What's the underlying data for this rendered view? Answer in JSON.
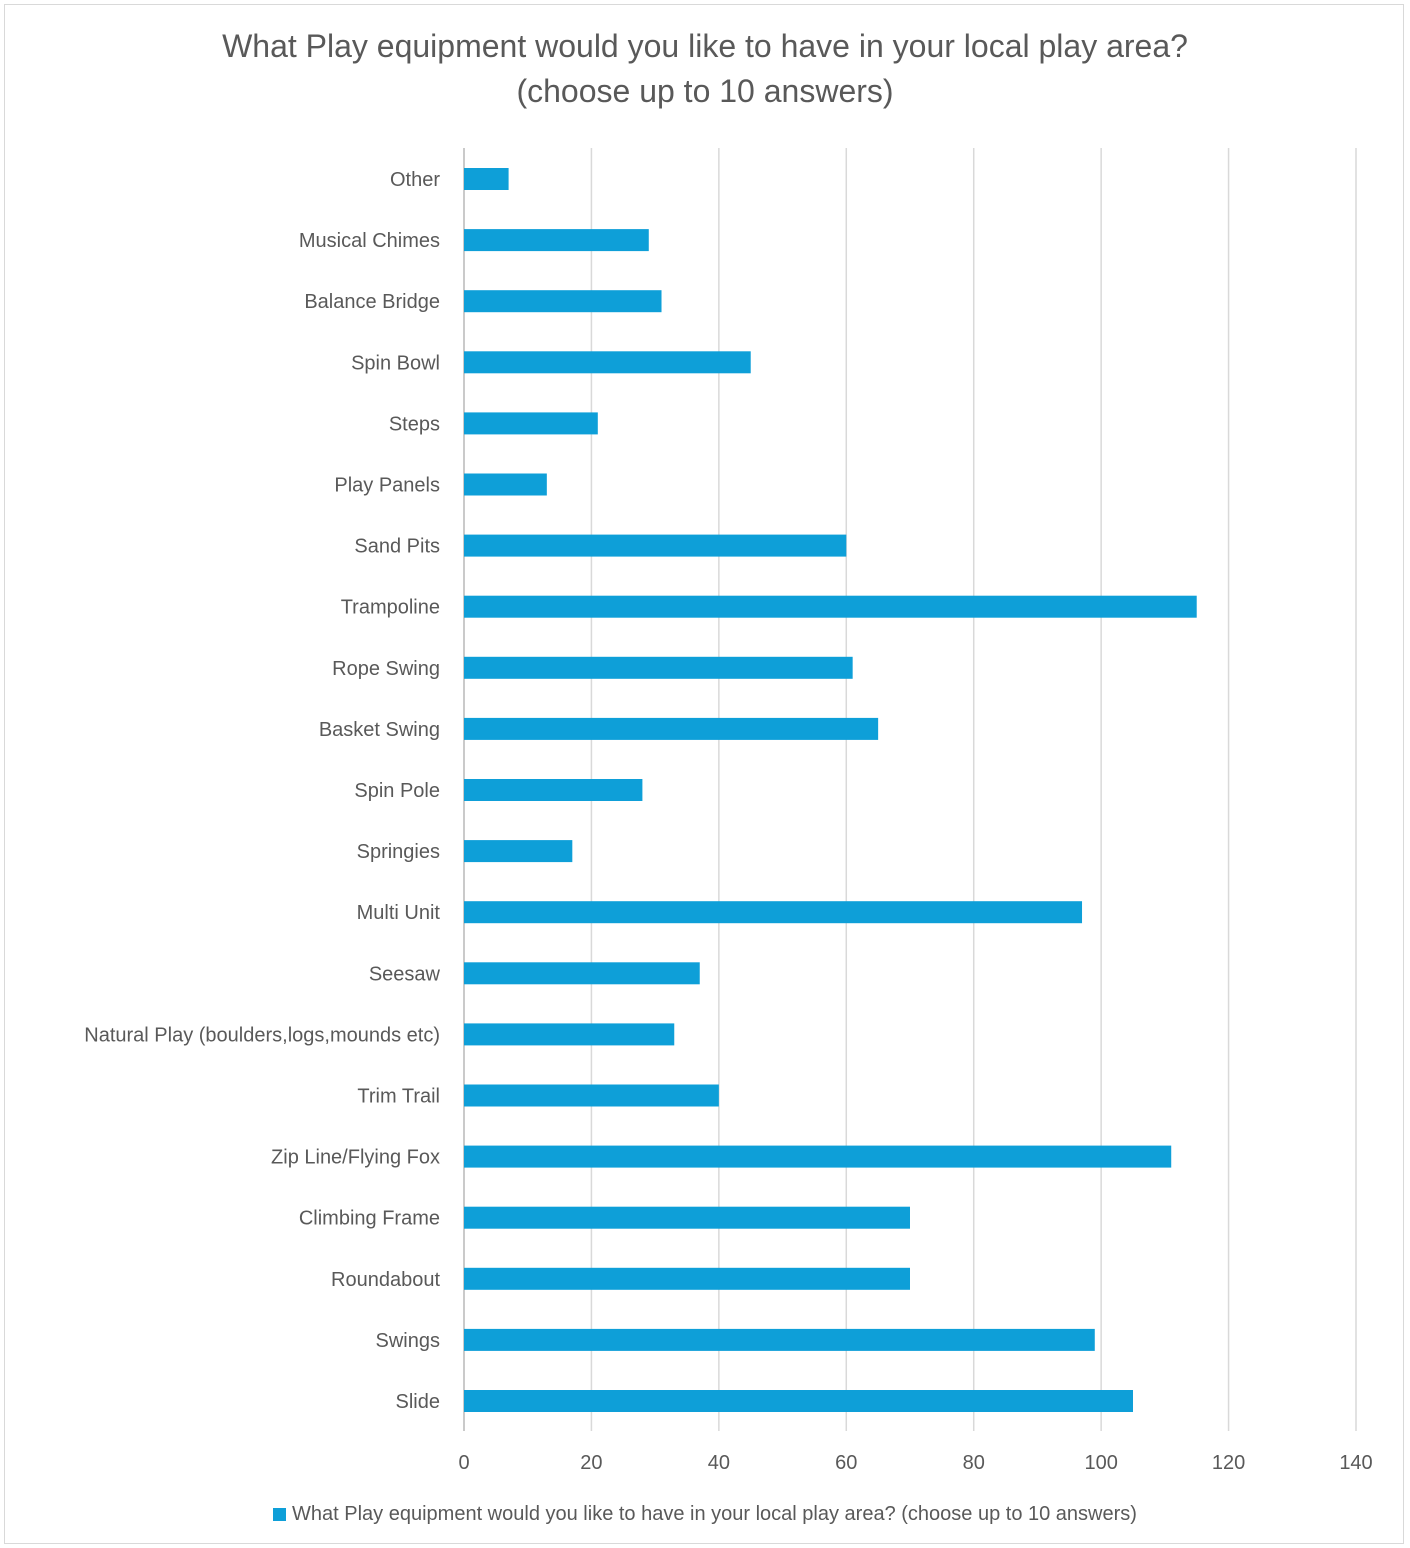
{
  "chart_data": {
    "type": "bar",
    "orientation": "horizontal",
    "title_line1": "What Play equipment would you like to have in your local play area?",
    "title_line2": "(choose up to 10 answers)",
    "categories": [
      "Other",
      "Musical Chimes",
      "Balance Bridge",
      "Spin Bowl",
      "Steps",
      "Play Panels",
      "Sand Pits",
      "Trampoline",
      "Rope Swing",
      "Basket Swing",
      "Spin Pole",
      "Springies",
      "Multi Unit",
      "Seesaw",
      "Natural Play (boulders,logs,mounds etc)",
      "Trim Trail",
      "Zip Line/Flying Fox",
      "Climbing Frame",
      "Roundabout",
      "Swings",
      "Slide"
    ],
    "series": [
      {
        "name": "What Play equipment would you like to have in your local play area? (choose up to 10 answers)",
        "color": "#0e9fd8",
        "values": [
          7,
          29,
          31,
          45,
          21,
          13,
          60,
          115,
          61,
          65,
          28,
          17,
          97,
          37,
          33,
          40,
          111,
          70,
          70,
          99,
          105
        ]
      }
    ],
    "xlim": [
      0,
      140
    ],
    "xticks": [
      0,
      20,
      40,
      60,
      80,
      100,
      120,
      140
    ],
    "grid": "vertical",
    "legend_position": "bottom"
  }
}
